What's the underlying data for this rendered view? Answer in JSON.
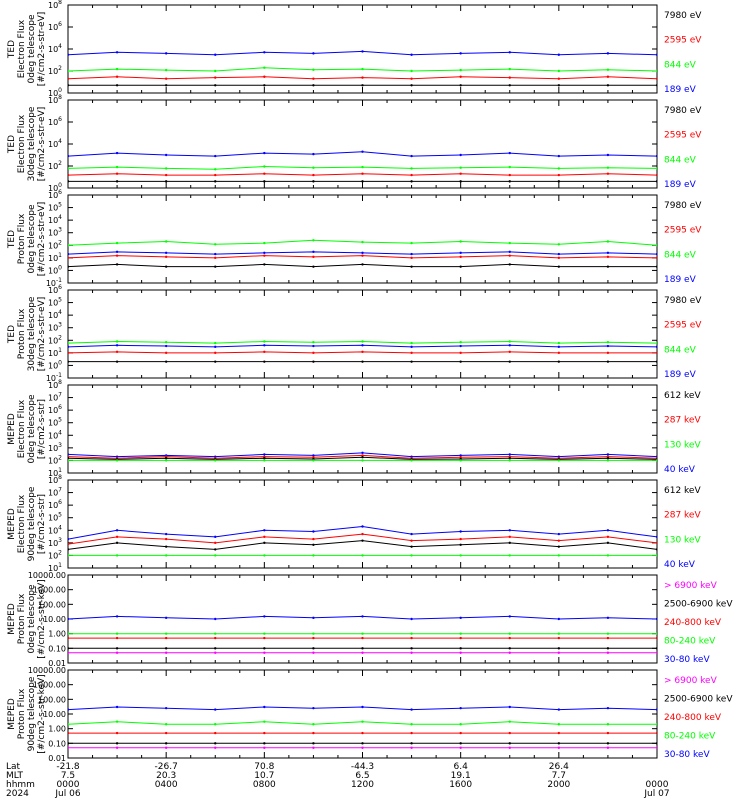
{
  "time_axis": {
    "rows": [
      {
        "label": "Lat",
        "values": [
          "-21.8",
          "-26.7",
          "70.8",
          "-44.3",
          "6.4",
          "26.4",
          ""
        ]
      },
      {
        "label": "MLT",
        "values": [
          "7.5",
          "20.3",
          "10.7",
          "6.5",
          "19.1",
          "7.7",
          ""
        ]
      },
      {
        "label": "hhmm",
        "values": [
          "0000",
          "0400",
          "0800",
          "1200",
          "1600",
          "2000",
          "0000"
        ]
      },
      {
        "label": "2024",
        "values": [
          "Jul 06",
          "",
          "",
          "",
          "",
          "",
          "Jul 07"
        ]
      }
    ]
  },
  "colors": {
    "black": "#000000",
    "red": "#ff0000",
    "green": "#00ff00",
    "blue": "#0000ff",
    "magenta": "#ff00ff"
  },
  "chart_data": [
    {
      "type": "line",
      "ylabel": [
        "TED",
        "Electron Flux",
        "0deg telescope",
        "[#/cm2-s-str-eV]"
      ],
      "log": true,
      "ylim": [
        1,
        100000000
      ],
      "ticks": [
        "10^0",
        "10^2",
        "10^4",
        "10^6",
        "10^8"
      ],
      "legend": [
        {
          "name": "7980 eV",
          "color": "black"
        },
        {
          "name": "2595 eV",
          "color": "red"
        },
        {
          "name": "844 eV",
          "color": "green"
        },
        {
          "name": "189 eV",
          "color": "blue"
        }
      ],
      "x": [
        0,
        2,
        4,
        6,
        8,
        10,
        12,
        14,
        16,
        18,
        20,
        22,
        24
      ],
      "series": [
        {
          "color": "blue",
          "values": [
            3000,
            5000,
            4000,
            3000,
            5000,
            4000,
            6000,
            3000,
            4000,
            5000,
            3000,
            4000,
            3000
          ]
        },
        {
          "color": "green",
          "values": [
            100,
            150,
            120,
            100,
            200,
            130,
            150,
            100,
            120,
            150,
            100,
            130,
            100
          ]
        },
        {
          "color": "red",
          "values": [
            20,
            30,
            20,
            25,
            30,
            20,
            25,
            20,
            30,
            25,
            20,
            30,
            20
          ]
        },
        {
          "color": "black",
          "values": [
            5,
            5,
            5,
            5,
            5,
            5,
            5,
            5,
            5,
            5,
            5,
            5,
            5
          ]
        }
      ]
    },
    {
      "type": "line",
      "ylabel": [
        "TED",
        "Electron Flux",
        "30deg telescope",
        "[#/cm2-s-str-eV]"
      ],
      "log": true,
      "ylim": [
        1,
        100000000
      ],
      "ticks": [
        "10^0",
        "10^2",
        "10^4",
        "10^6",
        "10^8"
      ],
      "legend": [
        {
          "name": "7980 eV",
          "color": "black"
        },
        {
          "name": "2595 eV",
          "color": "red"
        },
        {
          "name": "844 eV",
          "color": "green"
        },
        {
          "name": "189 eV",
          "color": "blue"
        }
      ],
      "x": [
        0,
        2,
        4,
        6,
        8,
        10,
        12,
        14,
        16,
        18,
        20,
        22,
        24
      ],
      "series": [
        {
          "color": "blue",
          "values": [
            800,
            1500,
            1000,
            800,
            1500,
            1200,
            2000,
            800,
            1000,
            1500,
            800,
            1000,
            800
          ]
        },
        {
          "color": "green",
          "values": [
            60,
            80,
            60,
            50,
            90,
            70,
            80,
            60,
            70,
            80,
            60,
            70,
            60
          ]
        },
        {
          "color": "red",
          "values": [
            15,
            20,
            15,
            15,
            20,
            15,
            20,
            15,
            20,
            15,
            15,
            20,
            15
          ]
        },
        {
          "color": "black",
          "values": [
            4,
            4,
            4,
            4,
            4,
            4,
            4,
            4,
            4,
            4,
            4,
            4,
            4
          ]
        }
      ]
    },
    {
      "type": "line",
      "ylabel": [
        "TED",
        "Proton Flux",
        "0deg telescope",
        "[#/cm2-s-str-eV]"
      ],
      "log": true,
      "ylim": [
        0.1,
        1000000
      ],
      "ticks": [
        "10^-1",
        "10^0",
        "10^1",
        "10^2",
        "10^3",
        "10^4",
        "10^5",
        "10^6"
      ],
      "legend": [
        {
          "name": "7980 eV",
          "color": "black"
        },
        {
          "name": "2595 eV",
          "color": "red"
        },
        {
          "name": "844 eV",
          "color": "green"
        },
        {
          "name": "189 eV",
          "color": "blue"
        }
      ],
      "x": [
        0,
        2,
        4,
        6,
        8,
        10,
        12,
        14,
        16,
        18,
        20,
        22,
        24
      ],
      "series": [
        {
          "color": "green",
          "values": [
            100,
            150,
            200,
            120,
            150,
            250,
            180,
            150,
            200,
            150,
            120,
            200,
            100
          ]
        },
        {
          "color": "blue",
          "values": [
            20,
            30,
            25,
            20,
            25,
            30,
            25,
            20,
            25,
            30,
            20,
            25,
            20
          ]
        },
        {
          "color": "red",
          "values": [
            10,
            15,
            12,
            10,
            15,
            12,
            15,
            10,
            12,
            15,
            10,
            12,
            10
          ]
        },
        {
          "color": "black",
          "values": [
            2,
            3,
            2,
            2,
            3,
            2,
            3,
            2,
            2,
            3,
            2,
            2,
            2
          ]
        }
      ]
    },
    {
      "type": "line",
      "ylabel": [
        "TED",
        "Proton Flux",
        "30deg telescope",
        "[#/cm2-s-str-eV]"
      ],
      "log": true,
      "ylim": [
        0.1,
        1000000
      ],
      "ticks": [
        "10^-1",
        "10^0",
        "10^1",
        "10^2",
        "10^3",
        "10^4",
        "10^5",
        "10^6"
      ],
      "legend": [
        {
          "name": "7980 eV",
          "color": "black"
        },
        {
          "name": "2595 eV",
          "color": "red"
        },
        {
          "name": "844 eV",
          "color": "green"
        },
        {
          "name": "189 eV",
          "color": "blue"
        }
      ],
      "x": [
        0,
        2,
        4,
        6,
        8,
        10,
        12,
        14,
        16,
        18,
        20,
        22,
        24
      ],
      "series": [
        {
          "color": "green",
          "values": [
            60,
            80,
            70,
            60,
            80,
            70,
            80,
            60,
            70,
            80,
            60,
            70,
            60
          ]
        },
        {
          "color": "blue",
          "values": [
            30,
            40,
            35,
            30,
            40,
            35,
            40,
            30,
            35,
            40,
            30,
            35,
            30
          ]
        },
        {
          "color": "red",
          "values": [
            10,
            12,
            10,
            10,
            12,
            10,
            12,
            10,
            10,
            12,
            10,
            10,
            10
          ]
        },
        {
          "color": "black",
          "values": [
            2,
            2,
            2,
            2,
            2,
            2,
            2,
            2,
            2,
            2,
            2,
            2,
            2
          ]
        }
      ]
    },
    {
      "type": "line",
      "ylabel": [
        "MEPED",
        "Electron Flux",
        "0deg telescope",
        "[#/cm2-s-str]"
      ],
      "log": true,
      "ylim": [
        10,
        100000000
      ],
      "ticks": [
        "10^1",
        "10^2",
        "10^3",
        "10^4",
        "10^5",
        "10^6",
        "10^7",
        "10^8"
      ],
      "legend": [
        {
          "name": "612 keV",
          "color": "black"
        },
        {
          "name": "287 keV",
          "color": "red"
        },
        {
          "name": "130 keV",
          "color": "green"
        },
        {
          "name": "40 keV",
          "color": "blue"
        }
      ],
      "x": [
        0,
        2,
        4,
        6,
        8,
        10,
        12,
        14,
        16,
        18,
        20,
        22,
        24
      ],
      "series": [
        {
          "color": "blue",
          "values": [
            300,
            200,
            250,
            200,
            300,
            250,
            400,
            200,
            250,
            300,
            200,
            300,
            200
          ]
        },
        {
          "color": "red",
          "values": [
            200,
            150,
            200,
            150,
            200,
            180,
            250,
            150,
            180,
            200,
            150,
            200,
            150
          ]
        },
        {
          "color": "black",
          "values": [
            150,
            120,
            150,
            120,
            150,
            130,
            180,
            120,
            130,
            150,
            120,
            150,
            120
          ]
        },
        {
          "color": "green",
          "values": [
            100,
            100,
            100,
            100,
            100,
            100,
            100,
            100,
            100,
            100,
            100,
            100,
            100
          ]
        }
      ]
    },
    {
      "type": "line",
      "ylabel": [
        "MEPED",
        "Electron Flux",
        "90deg telescope",
        "[#/cm2-s-str]"
      ],
      "log": true,
      "ylim": [
        10,
        100000000
      ],
      "ticks": [
        "10^1",
        "10^2",
        "10^3",
        "10^4",
        "10^5",
        "10^6",
        "10^7",
        "10^8"
      ],
      "legend": [
        {
          "name": "612 keV",
          "color": "black"
        },
        {
          "name": "287 keV",
          "color": "red"
        },
        {
          "name": "130 keV",
          "color": "green"
        },
        {
          "name": "40 keV",
          "color": "blue"
        }
      ],
      "x": [
        0,
        2,
        4,
        6,
        8,
        10,
        12,
        14,
        16,
        18,
        20,
        22,
        24
      ],
      "series": [
        {
          "color": "blue",
          "values": [
            2000,
            10000,
            5000,
            3000,
            10000,
            8000,
            20000,
            5000,
            8000,
            10000,
            5000,
            10000,
            3000
          ]
        },
        {
          "color": "red",
          "values": [
            800,
            3000,
            2000,
            1000,
            3000,
            2000,
            5000,
            1500,
            2000,
            3000,
            1500,
            3000,
            1000
          ]
        },
        {
          "color": "black",
          "values": [
            300,
            1000,
            500,
            300,
            1000,
            700,
            1500,
            500,
            700,
            1000,
            500,
            1000,
            300
          ]
        },
        {
          "color": "green",
          "values": [
            100,
            100,
            100,
            100,
            100,
            100,
            100,
            100,
            100,
            100,
            100,
            100,
            100
          ]
        }
      ]
    },
    {
      "type": "line",
      "ylabel": [
        "MEPED",
        "Proton Flux",
        "0deg telescope",
        "[#/cm2-s-str-keV]"
      ],
      "log": true,
      "ylim": [
        0.01,
        10000
      ],
      "ticks": [
        "0.01",
        "0.10",
        "1.00",
        "10.00",
        "100.00",
        "1000.00",
        "10000.00"
      ],
      "legend": [
        {
          "name": "> 6900 keV",
          "color": "magenta"
        },
        {
          "name": "2500-6900 keV",
          "color": "black"
        },
        {
          "name": "240-800 keV",
          "color": "red"
        },
        {
          "name": "80-240 keV",
          "color": "green"
        },
        {
          "name": "30-80 keV",
          "color": "blue"
        }
      ],
      "x": [
        0,
        2,
        4,
        6,
        8,
        10,
        12,
        14,
        16,
        18,
        20,
        22,
        24
      ],
      "series": [
        {
          "color": "blue",
          "values": [
            10,
            15,
            12,
            10,
            15,
            12,
            15,
            10,
            12,
            15,
            10,
            12,
            10
          ]
        },
        {
          "color": "green",
          "values": [
            1,
            1,
            1,
            1,
            1,
            1,
            1,
            1,
            1,
            1,
            1,
            1,
            1
          ]
        },
        {
          "color": "red",
          "values": [
            0.5,
            0.5,
            0.5,
            0.5,
            0.5,
            0.5,
            0.5,
            0.5,
            0.5,
            0.5,
            0.5,
            0.5,
            0.5
          ]
        },
        {
          "color": "black",
          "values": [
            0.1,
            0.1,
            0.1,
            0.1,
            0.1,
            0.1,
            0.1,
            0.1,
            0.1,
            0.1,
            0.1,
            0.1,
            0.1
          ]
        },
        {
          "color": "magenta",
          "values": [
            0.05,
            0.05,
            0.05,
            0.05,
            0.05,
            0.05,
            0.05,
            0.05,
            0.05,
            0.05,
            0.05,
            0.05,
            0.05
          ]
        }
      ]
    },
    {
      "type": "line",
      "ylabel": [
        "MEPED",
        "Proton Flux",
        "90deg telescope",
        "[#/cm2-s-str-keV]"
      ],
      "log": true,
      "ylim": [
        0.01,
        10000
      ],
      "ticks": [
        "0.01",
        "0.10",
        "1.00",
        "10.00",
        "100.00",
        "1000.00",
        "10000.00"
      ],
      "legend": [
        {
          "name": "> 6900 keV",
          "color": "magenta"
        },
        {
          "name": "2500-6900 keV",
          "color": "black"
        },
        {
          "name": "240-800 keV",
          "color": "red"
        },
        {
          "name": "80-240 keV",
          "color": "green"
        },
        {
          "name": "30-80 keV",
          "color": "blue"
        }
      ],
      "x": [
        0,
        2,
        4,
        6,
        8,
        10,
        12,
        14,
        16,
        18,
        20,
        22,
        24
      ],
      "series": [
        {
          "color": "blue",
          "values": [
            20,
            30,
            25,
            20,
            30,
            25,
            30,
            20,
            25,
            30,
            20,
            25,
            20
          ]
        },
        {
          "color": "green",
          "values": [
            2,
            3,
            2,
            2,
            3,
            2,
            3,
            2,
            2,
            3,
            2,
            2,
            2
          ]
        },
        {
          "color": "red",
          "values": [
            0.5,
            0.5,
            0.5,
            0.5,
            0.5,
            0.5,
            0.5,
            0.5,
            0.5,
            0.5,
            0.5,
            0.5,
            0.5
          ]
        },
        {
          "color": "black",
          "values": [
            0.1,
            0.1,
            0.1,
            0.1,
            0.1,
            0.1,
            0.1,
            0.1,
            0.1,
            0.1,
            0.1,
            0.1,
            0.1
          ]
        },
        {
          "color": "magenta",
          "values": [
            0.05,
            0.05,
            0.05,
            0.05,
            0.05,
            0.05,
            0.05,
            0.05,
            0.05,
            0.05,
            0.05,
            0.05,
            0.05
          ]
        }
      ]
    }
  ]
}
